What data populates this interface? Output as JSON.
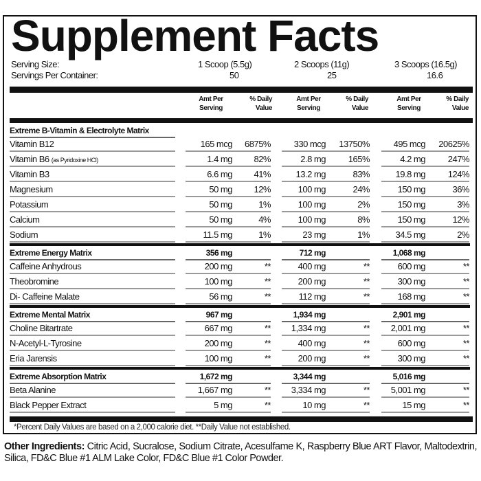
{
  "title": "Supplement Facts",
  "serving_size": {
    "label": "Serving Size:",
    "values": [
      "1 Scoop (5.5g)",
      "2 Scoops (11g)",
      "3 Scoops (16.5g)"
    ]
  },
  "servings_per_container": {
    "label": "Servings Per Container:",
    "values": [
      "50",
      "25",
      "16.6"
    ]
  },
  "column_headers": {
    "amount_line1": "Amt Per",
    "amount_line2": "Serving",
    "dv_line1": "% Daily",
    "dv_line2": "Value"
  },
  "sections": [
    {
      "name": "Extreme B-Vitamin & Electrolyte Matrix",
      "totals": [
        "",
        "",
        ""
      ],
      "items": [
        {
          "name": "Vitamin B12",
          "sub": "",
          "amounts": [
            "165 mcg",
            "330 mcg",
            "495 mcg"
          ],
          "dv": [
            "6875%",
            "13750%",
            "20625%"
          ]
        },
        {
          "name": "Vitamin B6",
          "sub": "(as Pyridoxine HCl)",
          "amounts": [
            "1.4 mg",
            "2.8 mg",
            "4.2 mg"
          ],
          "dv": [
            "82%",
            "165%",
            "247%"
          ]
        },
        {
          "name": "Vitamin B3",
          "sub": "",
          "amounts": [
            "6.6 mg",
            "13.2 mg",
            "19.8 mg"
          ],
          "dv": [
            "41%",
            "83%",
            "124%"
          ]
        },
        {
          "name": "Magnesium",
          "sub": "",
          "amounts": [
            "50 mg",
            "100 mg",
            "150 mg"
          ],
          "dv": [
            "12%",
            "24%",
            "36%"
          ]
        },
        {
          "name": "Potassium",
          "sub": "",
          "amounts": [
            "50 mg",
            "100 mg",
            "150 mg"
          ],
          "dv": [
            "1%",
            "2%",
            "3%"
          ]
        },
        {
          "name": "Calcium",
          "sub": "",
          "amounts": [
            "50 mg",
            "100 mg",
            "150 mg"
          ],
          "dv": [
            "4%",
            "8%",
            "12%"
          ]
        },
        {
          "name": "Sodium",
          "sub": "",
          "amounts": [
            "11.5 mg",
            "23 mg",
            "34.5 mg"
          ],
          "dv": [
            "1%",
            "1%",
            "2%"
          ]
        }
      ]
    },
    {
      "name": "Extreme Energy Matrix",
      "totals": [
        "356 mg",
        "712 mg",
        "1,068 mg"
      ],
      "items": [
        {
          "name": "Caffeine Anhydrous",
          "sub": "",
          "amounts": [
            "200 mg",
            "400 mg",
            "600 mg"
          ],
          "dv": [
            "**",
            "**",
            "**"
          ]
        },
        {
          "name": "Theobromine",
          "sub": "",
          "amounts": [
            "100 mg",
            "200 mg",
            "300 mg"
          ],
          "dv": [
            "**",
            "**",
            "**"
          ]
        },
        {
          "name": "Di- Caffeine Malate",
          "sub": "",
          "amounts": [
            "56 mg",
            "112 mg",
            "168 mg"
          ],
          "dv": [
            "**",
            "**",
            "**"
          ]
        }
      ]
    },
    {
      "name": "Extreme Mental Matrix",
      "totals": [
        "967 mg",
        "1,934 mg",
        "2,901 mg"
      ],
      "items": [
        {
          "name": "Choline Bitartrate",
          "sub": "",
          "amounts": [
            "667 mg",
            "1,334 mg",
            "2,001 mg"
          ],
          "dv": [
            "**",
            "**",
            "**"
          ]
        },
        {
          "name": "N-Acetyl-L-Tyrosine",
          "sub": "",
          "amounts": [
            "200 mg",
            "400 mg",
            "600 mg"
          ],
          "dv": [
            "**",
            "**",
            "**"
          ]
        },
        {
          "name": "Eria Jarensis",
          "sub": "",
          "amounts": [
            "100 mg",
            "200 mg",
            "300 mg"
          ],
          "dv": [
            "**",
            "**",
            "**"
          ]
        }
      ]
    },
    {
      "name": "Extreme Absorption Matrix",
      "totals": [
        "1,672 mg",
        "3,344 mg",
        "5,016 mg"
      ],
      "items": [
        {
          "name": "Beta Alanine",
          "sub": "",
          "amounts": [
            "1,667 mg",
            "3,334 mg",
            "5,001 mg"
          ],
          "dv": [
            "**",
            "**",
            "**"
          ]
        },
        {
          "name": "Black Pepper Extract",
          "sub": "",
          "amounts": [
            "5 mg",
            "10 mg",
            "15 mg"
          ],
          "dv": [
            "**",
            "**",
            "**"
          ]
        }
      ]
    }
  ],
  "footnote": "*Percent Daily Values are based on a 2,000 calorie diet. **Daily Value not established.",
  "other_ingredients": {
    "label": "Other Ingredients:",
    "text": "Citric Acid, Sucralose, Sodium Citrate, Acesulfame K, Raspberry Blue ART Flavor, Maltodextrin, Silica, FD&C Blue #1 ALM Lake Color, FD&C Blue #1 Color Powder."
  }
}
